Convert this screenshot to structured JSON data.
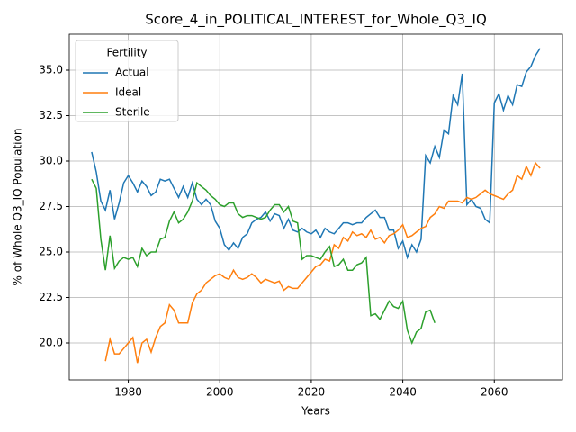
{
  "chart_data": {
    "type": "line",
    "title": "Score_4_in_POLITICAL_INTEREST_for_Whole_Q3_IQ",
    "xlabel": "Years",
    "ylabel": "% of Whole Q3_IQ Population",
    "legend_title": "Fertility",
    "legend": "upper left",
    "grid": true,
    "xlim": [
      1967.1,
      2074.9
    ],
    "ylim": [
      17.97,
      36.98
    ],
    "xticks": [
      1980,
      2000,
      2020,
      2040,
      2060
    ],
    "yticks": [
      {
        "value": 20,
        "label": "20.0"
      },
      {
        "value": 22.5,
        "label": "22.5"
      },
      {
        "value": 25,
        "label": "25.0"
      },
      {
        "value": 27.5,
        "label": "27.5"
      },
      {
        "value": 30,
        "label": "30.0"
      },
      {
        "value": 32.5,
        "label": "32.5"
      },
      {
        "value": 35,
        "label": "35.0"
      }
    ],
    "x": [
      1972,
      1973,
      1974,
      1975,
      1976,
      1977,
      1978,
      1979,
      1980,
      1981,
      1982,
      1983,
      1984,
      1985,
      1986,
      1987,
      1988,
      1989,
      1990,
      1991,
      1992,
      1993,
      1994,
      1995,
      1996,
      1997,
      1998,
      1999,
      2000,
      2001,
      2002,
      2003,
      2004,
      2005,
      2006,
      2007,
      2008,
      2009,
      2010,
      2011,
      2012,
      2013,
      2014,
      2015,
      2016,
      2017,
      2018,
      2019,
      2020,
      2021,
      2022,
      2023,
      2024,
      2025,
      2026,
      2027,
      2028,
      2029,
      2030,
      2031,
      2032,
      2033,
      2034,
      2035,
      2036,
      2037,
      2038,
      2039,
      2040,
      2041,
      2042,
      2043,
      2044,
      2045,
      2046,
      2047,
      2048,
      2049,
      2050,
      2051,
      2052,
      2053,
      2054,
      2055,
      2056,
      2057,
      2058,
      2059,
      2060,
      2061,
      2062,
      2063,
      2064,
      2065,
      2066,
      2067,
      2068,
      2069,
      2070
    ],
    "series": [
      {
        "name": "Actual",
        "color": "#1f77b4",
        "values": [
          30.5,
          29.4,
          27.8,
          27.3,
          28.4,
          26.8,
          27.7,
          28.8,
          29.2,
          28.8,
          28.3,
          28.9,
          28.6,
          28.1,
          28.3,
          29.0,
          28.9,
          29.0,
          28.5,
          28.0,
          28.6,
          28.0,
          28.8,
          27.9,
          27.6,
          27.9,
          27.6,
          26.7,
          26.3,
          25.4,
          25.1,
          25.5,
          25.2,
          25.8,
          26.0,
          26.6,
          26.8,
          26.9,
          27.2,
          26.7,
          27.1,
          27.0,
          26.3,
          26.8,
          26.2,
          26.1,
          26.3,
          26.1,
          26.0,
          26.2,
          25.8,
          26.3,
          26.1,
          26.0,
          26.3,
          26.6,
          26.6,
          26.5,
          26.6,
          26.6,
          26.9,
          27.1,
          27.3,
          26.9,
          26.9,
          26.2,
          26.2,
          25.2,
          25.6,
          24.7,
          25.4,
          25.0,
          25.7,
          30.3,
          29.9,
          30.8,
          30.2,
          31.7,
          31.5,
          33.6,
          33.1,
          34.8,
          27.6,
          27.9,
          27.5,
          27.4,
          26.8,
          26.6,
          33.2,
          33.7,
          32.8,
          33.6,
          33.1,
          34.2,
          34.1,
          34.9,
          35.2,
          35.8,
          36.2
        ]
      },
      {
        "name": "Ideal",
        "color": "#ff7f0e",
        "values": [
          null,
          null,
          null,
          19.0,
          20.2,
          19.4,
          19.4,
          19.7,
          20.0,
          20.3,
          18.9,
          20.0,
          20.2,
          19.5,
          20.3,
          20.9,
          21.1,
          22.1,
          21.8,
          21.1,
          21.1,
          21.1,
          22.2,
          22.7,
          22.9,
          23.3,
          23.5,
          23.7,
          23.8,
          23.6,
          23.5,
          24.0,
          23.6,
          23.5,
          23.6,
          23.8,
          23.6,
          23.3,
          23.5,
          23.4,
          23.3,
          23.4,
          22.9,
          23.1,
          23.0,
          23.0,
          23.3,
          23.6,
          23.9,
          24.2,
          24.3,
          24.6,
          24.5,
          25.4,
          25.2,
          25.8,
          25.6,
          26.1,
          25.9,
          26.0,
          25.8,
          26.2,
          25.7,
          25.8,
          25.5,
          25.9,
          26.0,
          26.2,
          26.5,
          25.8,
          25.9,
          26.1,
          26.3,
          26.4,
          26.9,
          27.1,
          27.5,
          27.4,
          27.8,
          27.8,
          27.8,
          27.7,
          28.0,
          27.9,
          28.0,
          28.2,
          28.4,
          28.2,
          28.1,
          28.0,
          27.9,
          28.2,
          28.4,
          29.2,
          29.0,
          29.7,
          29.2,
          29.9,
          29.6
        ]
      },
      {
        "name": "Sterile",
        "color": "#2ca02c",
        "values": [
          29.0,
          28.5,
          25.7,
          24.0,
          25.9,
          24.1,
          24.5,
          24.7,
          24.6,
          24.7,
          24.2,
          25.2,
          24.8,
          25.0,
          25.0,
          25.7,
          25.8,
          26.7,
          27.2,
          26.6,
          26.8,
          27.2,
          27.8,
          28.8,
          28.6,
          28.4,
          28.1,
          27.9,
          27.6,
          27.5,
          27.7,
          27.7,
          27.1,
          26.9,
          27.0,
          27.0,
          26.9,
          26.8,
          26.9,
          27.3,
          27.6,
          27.6,
          27.2,
          27.5,
          26.7,
          26.6,
          24.6,
          24.8,
          24.8,
          24.7,
          24.6,
          25.0,
          25.3,
          24.2,
          24.3,
          24.6,
          24.0,
          24.0,
          24.3,
          24.4,
          24.7,
          21.5,
          21.6,
          21.3,
          21.8,
          22.3,
          22.0,
          21.9,
          22.3,
          20.7,
          20.0,
          20.6,
          20.8,
          21.7,
          21.8,
          21.1,
          null,
          null,
          null,
          null,
          null,
          null,
          null,
          null,
          null,
          null,
          null,
          null,
          null,
          null,
          null,
          null,
          null,
          null,
          null,
          null,
          null,
          null,
          null
        ]
      }
    ]
  }
}
